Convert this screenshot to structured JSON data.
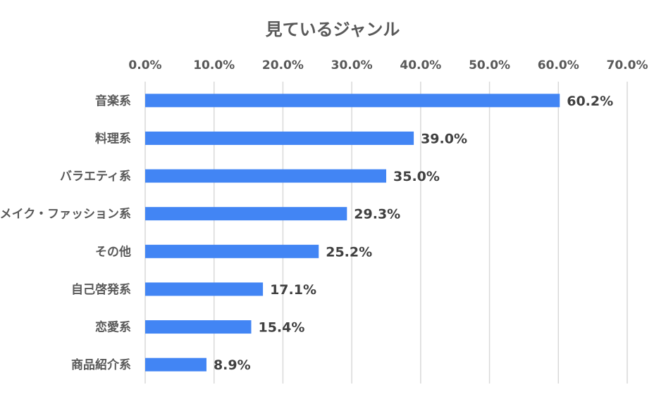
{
  "chart_data": {
    "type": "bar",
    "orientation": "horizontal",
    "title": "見ているジャンル",
    "categories": [
      "音楽系",
      "料理系",
      "バラエティ系",
      "メイク・ファッション系",
      "その他",
      "自己啓発系",
      "恋愛系",
      "商品紹介系"
    ],
    "values": [
      60.2,
      39.0,
      35.0,
      29.3,
      25.2,
      17.1,
      15.4,
      8.9
    ],
    "data_labels": [
      "60.2%",
      "39.0%",
      "35.0%",
      "29.3%",
      "25.2%",
      "17.1%",
      "15.4%",
      "8.9%"
    ],
    "x_ticks": [
      "0.0%",
      "10.0%",
      "20.0%",
      "30.0%",
      "40.0%",
      "50.0%",
      "60.0%",
      "70.0%"
    ],
    "xlim": [
      0,
      70
    ],
    "x_axis_position": "top",
    "grid": true,
    "legend": "none",
    "bar_color": "#4285f4"
  }
}
